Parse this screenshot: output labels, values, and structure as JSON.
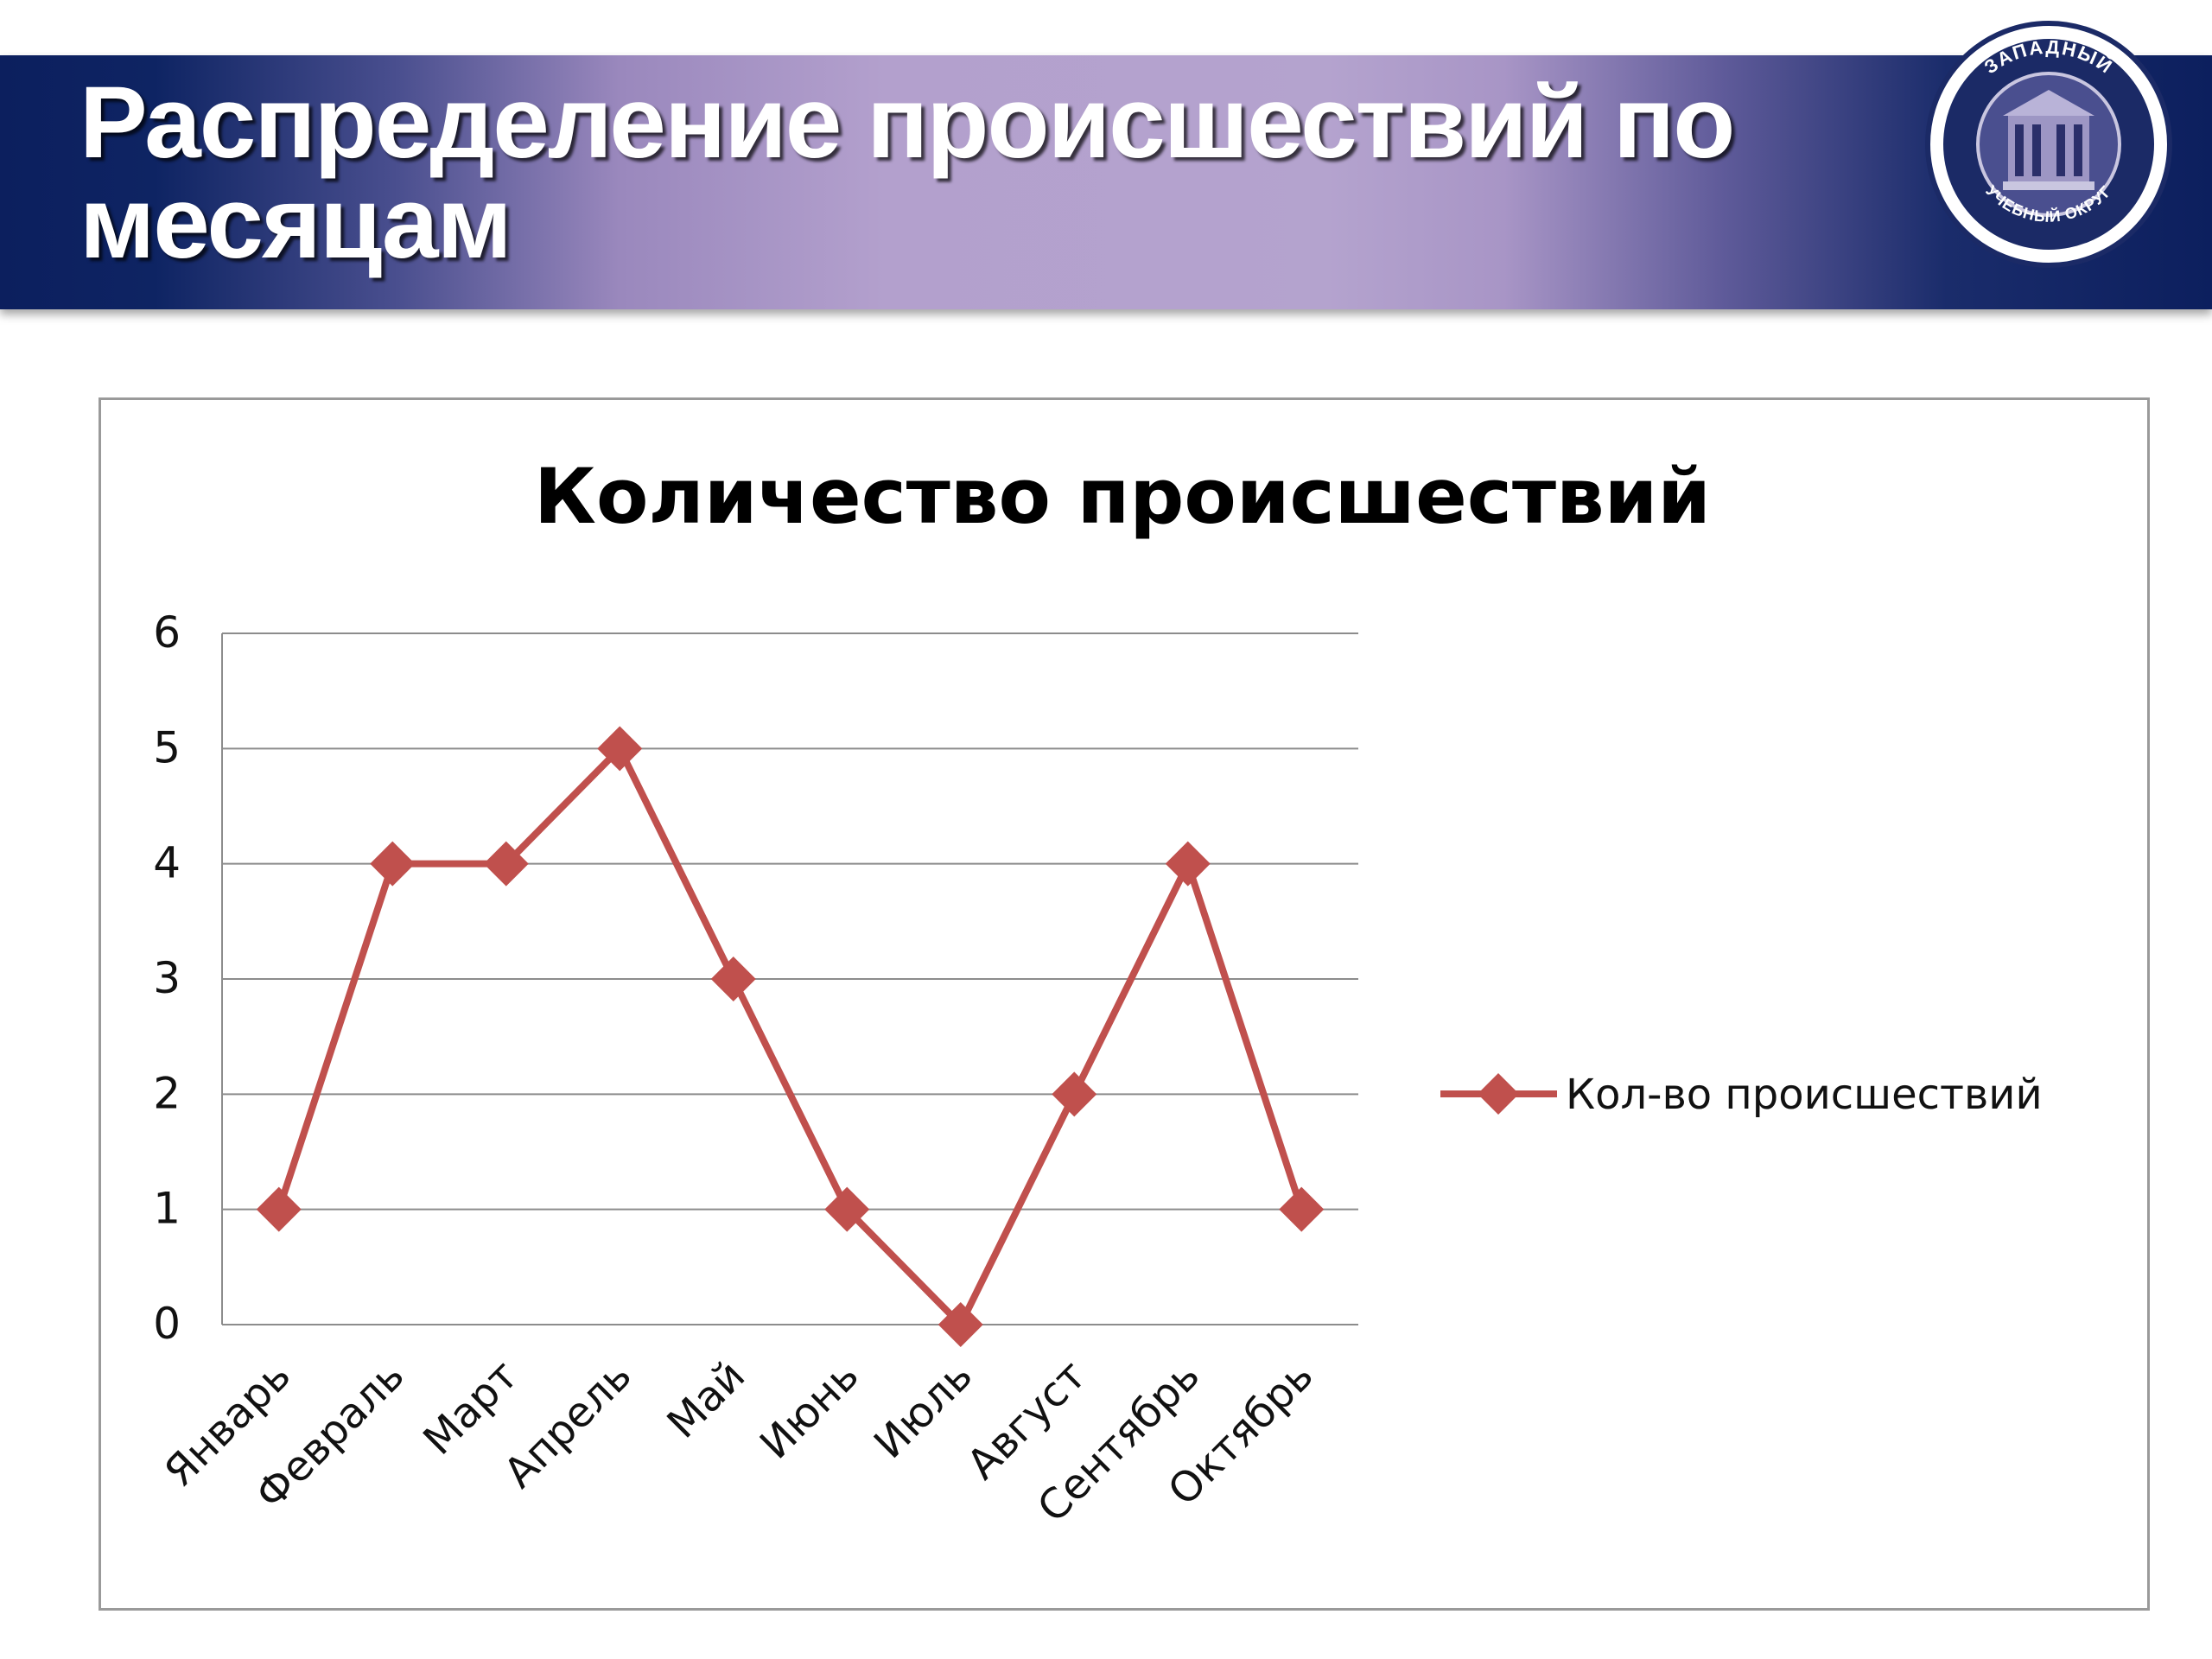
{
  "slide": {
    "title": "Распределение происшествий по месяцам"
  },
  "emblem": {
    "top_text": "ЗАПАДНЫЙ",
    "bottom_text": "УЧЕБНЫЙ ОКРУГ"
  },
  "colors": {
    "banner_dark": "#0c1f5e",
    "banner_light": "#b4a3ce",
    "series": "#c0504d",
    "gridline": "#8c8c8c"
  },
  "chart_data": {
    "type": "line",
    "title": "Количество происшествий",
    "xlabel": "",
    "ylabel": "",
    "categories": [
      "Январь",
      "Февраль",
      "Март",
      "Апрель",
      "Май",
      "Июнь",
      "Июль",
      "Август",
      "Сентябрь",
      "Октябрь"
    ],
    "series": [
      {
        "name": "Кол-во происшествий",
        "values": [
          1,
          4,
          4,
          5,
          3,
          1,
          0,
          2,
          4,
          1
        ],
        "color": "#c0504d",
        "marker": "diamond"
      }
    ],
    "y_ticks": [
      "0",
      "1",
      "2",
      "3",
      "4",
      "5",
      "6"
    ],
    "ylim": [
      0,
      6
    ],
    "grid": true,
    "legend": "right"
  }
}
